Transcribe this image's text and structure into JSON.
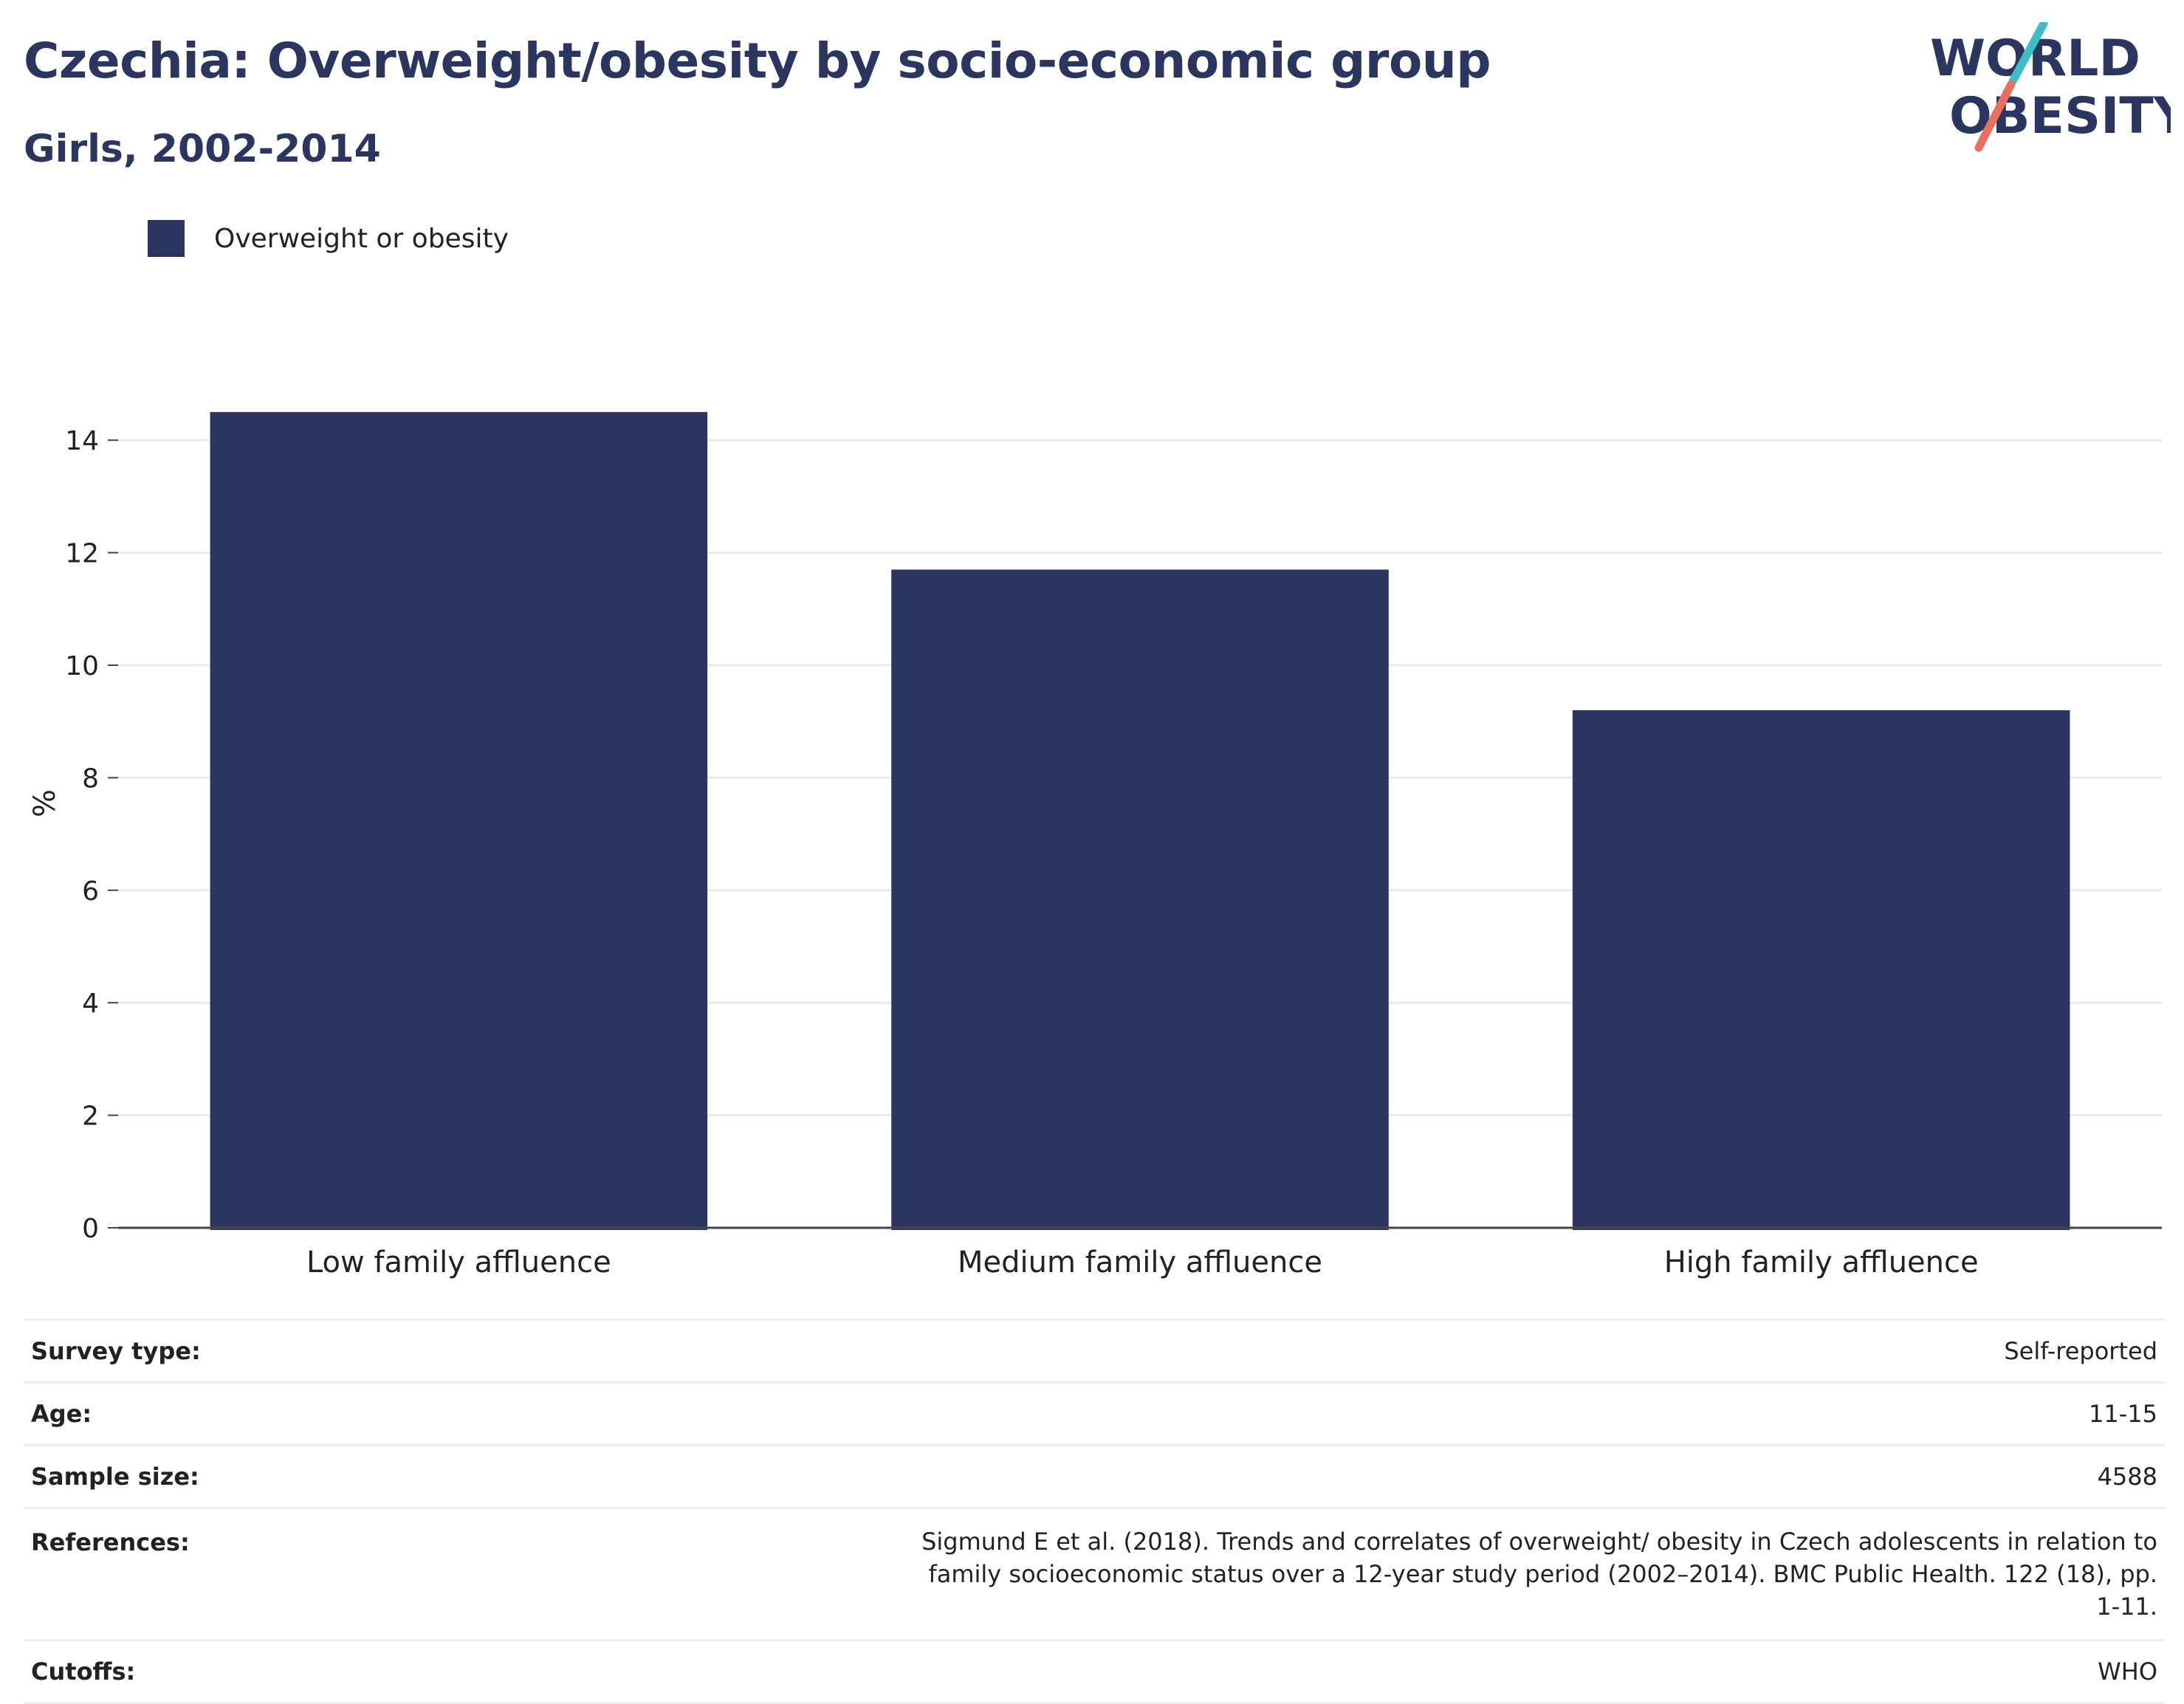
{
  "title": "Czechia: Overweight/obesity by socio-economic group",
  "subtitle": "Girls, 2002-2014",
  "logo": {
    "line1": "WORLD",
    "line2": "OBESITY",
    "accent_teal": "#3bbfc4",
    "accent_coral": "#e8705f",
    "text_color": "#2b3660"
  },
  "chart_data": {
    "type": "bar",
    "categories": [
      "Low family affluence",
      "Medium family affluence",
      "High family affluence"
    ],
    "series": [
      {
        "name": "Overweight or obesity",
        "values": [
          14.5,
          11.7,
          9.2
        ],
        "color": "#2b3660"
      }
    ],
    "ylabel": "%",
    "ylim": [
      0,
      15
    ],
    "yticks": [
      0,
      2,
      4,
      6,
      8,
      10,
      12,
      14
    ],
    "grid": true,
    "legend_position": "top-left"
  },
  "info": [
    {
      "key": "Survey type:",
      "value": "Self-reported"
    },
    {
      "key": "Age:",
      "value": "11-15"
    },
    {
      "key": "Sample size:",
      "value": "4588"
    },
    {
      "key": "References:",
      "value": "Sigmund E et al. (2018). Trends and correlates of overweight/ obesity in Czech adolescents in relation to family socioeconomic status over a 12-year study period (2002–2014). BMC Public Health. 122 (18), pp. 1-11."
    },
    {
      "key": "Cutoffs:",
      "value": "WHO"
    }
  ]
}
